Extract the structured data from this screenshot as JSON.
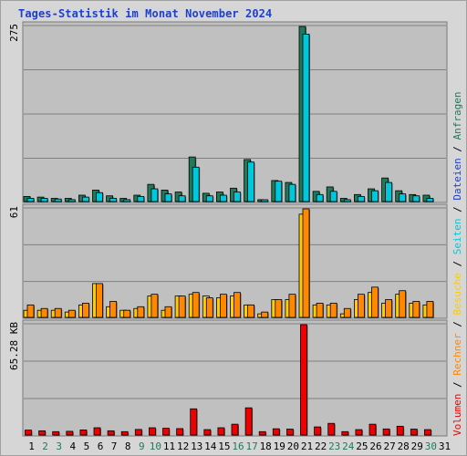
{
  "title": "Tages-Statistik im Monat November 2024",
  "colors": {
    "background": "#d6d6d6",
    "panel": "#c0c0c0",
    "grid": "#808080",
    "hits": "#1f7a5a",
    "files": "#00c8dc",
    "pages": "#00c8dc",
    "visits": "#ffcc00",
    "sites": "#ff8800",
    "kbytes": "#ee0000",
    "weekend_label": "#1f7a5a",
    "weekday_label": "#000000"
  },
  "legend": {
    "hits": "Anfragen",
    "files": "Dateien",
    "pages": "Seiten",
    "visits": "Besuche",
    "sites": "Rechner",
    "kbytes": "Volumen",
    "separator": "/"
  },
  "chart_data": [
    {
      "type": "bar",
      "panel": "top",
      "scale_label": "275",
      "ylim": [
        0,
        275
      ],
      "categories": [
        "1",
        "2",
        "3",
        "4",
        "5",
        "6",
        "7",
        "8",
        "9",
        "10",
        "11",
        "12",
        "13",
        "14",
        "15",
        "16",
        "17",
        "18",
        "19",
        "20",
        "21",
        "22",
        "23",
        "24",
        "25",
        "26",
        "27",
        "28",
        "29",
        "30"
      ],
      "series": [
        {
          "name": "Anfragen",
          "values": [
            8,
            7,
            5,
            5,
            10,
            18,
            9,
            5,
            10,
            27,
            18,
            15,
            70,
            13,
            15,
            21,
            66,
            3,
            33,
            30,
            275,
            16,
            23,
            5,
            11,
            20,
            37,
            17,
            11,
            10
          ]
        },
        {
          "name": "Dateien",
          "values": [
            5,
            5,
            4,
            3,
            7,
            14,
            5,
            3,
            8,
            20,
            12,
            9,
            54,
            9,
            10,
            15,
            62,
            2,
            32,
            27,
            263,
            11,
            16,
            3,
            8,
            17,
            30,
            12,
            9,
            5
          ]
        }
      ]
    },
    {
      "type": "bar",
      "panel": "middle",
      "scale_label": "61",
      "ylim": [
        0,
        61
      ],
      "categories": [
        "1",
        "2",
        "3",
        "4",
        "5",
        "6",
        "7",
        "8",
        "9",
        "10",
        "11",
        "12",
        "13",
        "14",
        "15",
        "16",
        "17",
        "18",
        "19",
        "20",
        "21",
        "22",
        "23",
        "24",
        "25",
        "26",
        "27",
        "28",
        "29",
        "30"
      ],
      "series": [
        {
          "name": "Besuche",
          "values": [
            4,
            4,
            4,
            3,
            7,
            19,
            6,
            4,
            5,
            12,
            4,
            12,
            13,
            12,
            11,
            12,
            7,
            2,
            10,
            10,
            58,
            7,
            7,
            2,
            10,
            14,
            8,
            13,
            8,
            7
          ]
        },
        {
          "name": "Rechner",
          "values": [
            7,
            5,
            5,
            4,
            8,
            19,
            9,
            4,
            6,
            13,
            6,
            12,
            14,
            11,
            13,
            14,
            7,
            3,
            10,
            13,
            61,
            8,
            8,
            5,
            13,
            17,
            10,
            15,
            9,
            9
          ]
        }
      ]
    },
    {
      "type": "bar",
      "panel": "bottom",
      "scale_label": "65.28 KB",
      "ylim": [
        0,
        65.28
      ],
      "categories": [
        "1",
        "2",
        "3",
        "4",
        "5",
        "6",
        "7",
        "8",
        "9",
        "10",
        "11",
        "12",
        "13",
        "14",
        "15",
        "16",
        "17",
        "18",
        "19",
        "20",
        "21",
        "22",
        "23",
        "24",
        "25",
        "26",
        "27",
        "28",
        "29",
        "30"
      ],
      "series": [
        {
          "name": "Volumen",
          "values": [
            2.9,
            2.5,
            2.0,
            2.2,
            3.0,
            4.3,
            2.5,
            2.0,
            3.3,
            4.3,
            4.0,
            3.8,
            15.5,
            3.2,
            4.3,
            6.4,
            16.1,
            2.0,
            3.7,
            3.5,
            65.28,
            4.8,
            6.9,
            2.0,
            3.2,
            6.4,
            3.6,
            5.2,
            3.5,
            3.2
          ]
        }
      ]
    }
  ],
  "x_axis": {
    "labels": [
      "1",
      "2",
      "3",
      "4",
      "5",
      "6",
      "7",
      "8",
      "9",
      "10",
      "11",
      "12",
      "13",
      "14",
      "15",
      "16",
      "17",
      "18",
      "19",
      "20",
      "21",
      "22",
      "23",
      "24",
      "25",
      "26",
      "27",
      "28",
      "29",
      "30",
      "31"
    ],
    "weekend_days": [
      "2",
      "3",
      "9",
      "10",
      "16",
      "17",
      "23",
      "24",
      "30"
    ]
  }
}
